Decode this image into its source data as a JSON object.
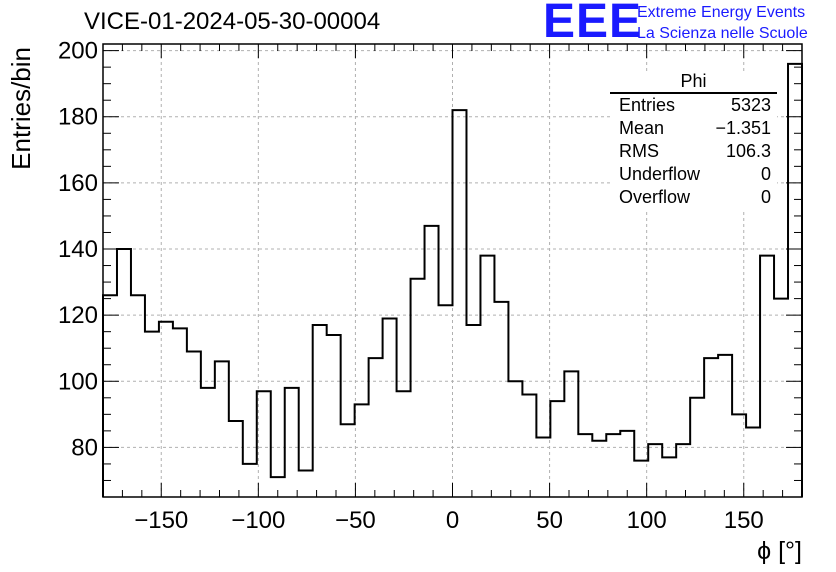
{
  "header": {
    "title": "VICE-01-2024-05-30-00004",
    "logo_text": "EEE",
    "logo_line1": "Extreme Energy Events",
    "logo_line2": "La Scienza nelle Scuole"
  },
  "stats": {
    "name": "Phi",
    "rows": [
      {
        "label": "Entries",
        "value": "5323"
      },
      {
        "label": "Mean",
        "value": "−1.351"
      },
      {
        "label": "RMS",
        "value": "106.3"
      },
      {
        "label": "Underflow",
        "value": "0"
      },
      {
        "label": "Overflow",
        "value": "0"
      }
    ]
  },
  "colors": {
    "line": "#000000",
    "grid": "#b0b0b0",
    "logo": "#1a1aff"
  },
  "chart_data": {
    "type": "histogram",
    "title": "VICE-01-2024-05-30-00004",
    "xlabel": "ϕ [°]",
    "ylabel": "Entries/bin",
    "xlim": [
      -180,
      180
    ],
    "ylim": [
      65,
      202
    ],
    "bin_width": 7.2,
    "xticks": [
      -150,
      -100,
      -50,
      0,
      50,
      100,
      150
    ],
    "xtick_labels": [
      "−150",
      "−100",
      "−50",
      "0",
      "50",
      "100",
      "150"
    ],
    "yticks": [
      80,
      100,
      120,
      140,
      160,
      180,
      200
    ],
    "ytick_labels": [
      "80",
      "100",
      "120",
      "140",
      "160",
      "180",
      "200"
    ],
    "grid": true,
    "values": [
      126,
      140,
      126,
      115,
      118,
      116,
      109,
      98,
      106,
      88,
      75,
      97,
      71,
      98,
      73,
      117,
      114,
      87,
      93,
      107,
      119,
      97,
      131,
      147,
      123,
      182,
      117,
      138,
      124,
      100,
      96,
      83,
      94,
      103,
      84,
      82,
      84,
      85,
      76,
      81,
      77,
      81,
      95,
      107,
      108,
      90,
      86,
      138,
      125,
      196
    ]
  }
}
